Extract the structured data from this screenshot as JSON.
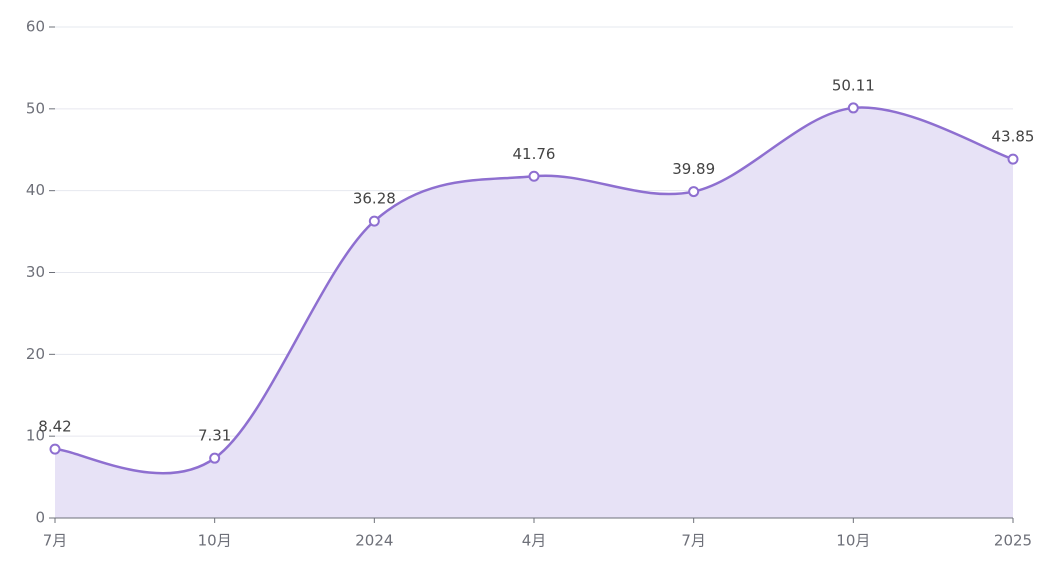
{
  "chart_data": {
    "type": "area",
    "categories": [
      "7月",
      "10月",
      "2024",
      "4月",
      "7月",
      "10月",
      "2025"
    ],
    "values": [
      8.42,
      7.31,
      36.28,
      41.76,
      39.89,
      50.11,
      43.85
    ],
    "color": "#8e6fd0",
    "fill": "#e7e2f6",
    "ylim": [
      0,
      60
    ],
    "yticks": [
      0,
      10,
      20,
      30,
      40,
      50,
      60
    ],
    "grid": true,
    "smooth": true,
    "data_labels": true
  }
}
